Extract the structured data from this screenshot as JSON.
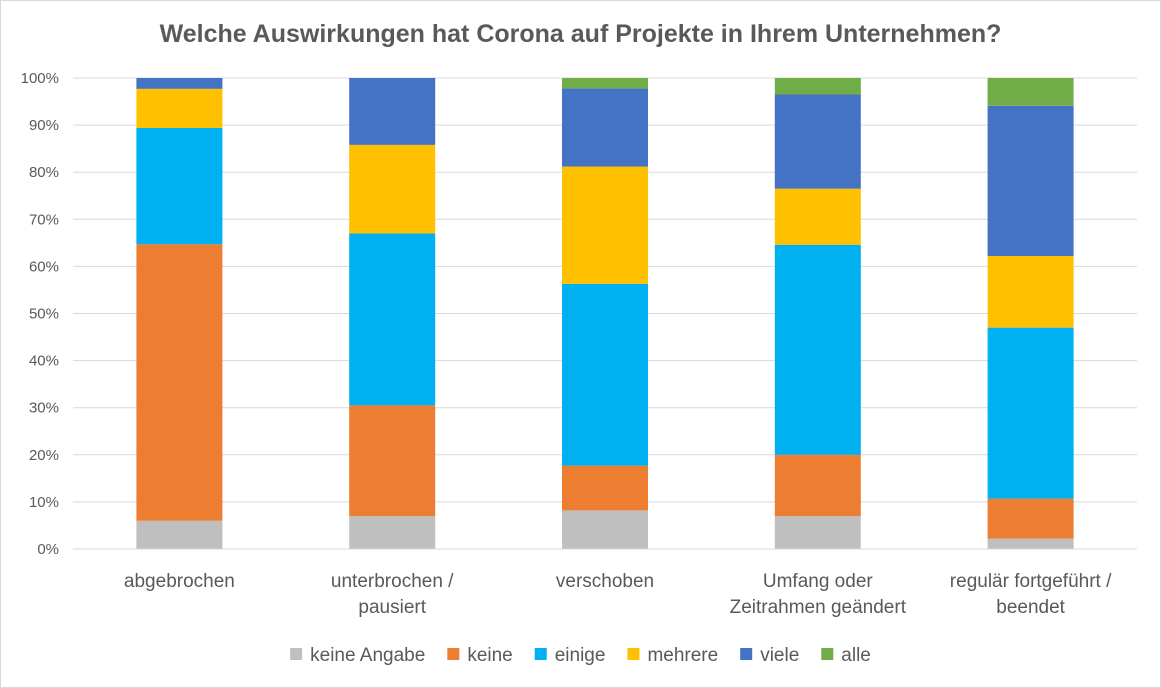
{
  "chart_data": {
    "type": "bar",
    "stacked": true,
    "title": "Welche Auswirkungen hat Corona auf Projekte in Ihrem Unternehmen?",
    "categories": [
      [
        "abgebrochen"
      ],
      [
        "unterbrochen /",
        "pausiert"
      ],
      [
        "verschoben"
      ],
      [
        "Umfang oder",
        "Zeitrahmen geändert"
      ],
      [
        "regulär fortgeführt /",
        "beendet"
      ]
    ],
    "ylim": [
      0,
      100
    ],
    "yticks": [
      "0%",
      "10%",
      "20%",
      "30%",
      "40%",
      "50%",
      "60%",
      "70%",
      "80%",
      "90%",
      "100%"
    ],
    "grid": true,
    "legend_position": "bottom",
    "series": [
      {
        "name": "keine Angabe",
        "color": "#BFBFBF",
        "values": [
          6,
          7,
          8.2,
          7,
          2.2
        ]
      },
      {
        "name": "keine",
        "color": "#ED7D31",
        "values": [
          58.7,
          23.5,
          9.5,
          13,
          8.5
        ]
      },
      {
        "name": "einige",
        "color": "#00B0F0",
        "values": [
          24.7,
          36.5,
          38.6,
          44.6,
          36.3
        ]
      },
      {
        "name": "mehrere",
        "color": "#FFC000",
        "values": [
          8.3,
          18.8,
          24.9,
          11.9,
          15.2
        ]
      },
      {
        "name": "viele",
        "color": "#4472C4",
        "values": [
          2.3,
          14.2,
          16.6,
          20,
          31.9
        ]
      },
      {
        "name": "alle",
        "color": "#70AD47",
        "values": [
          0,
          0,
          2.2,
          3.5,
          5.9
        ]
      }
    ]
  }
}
